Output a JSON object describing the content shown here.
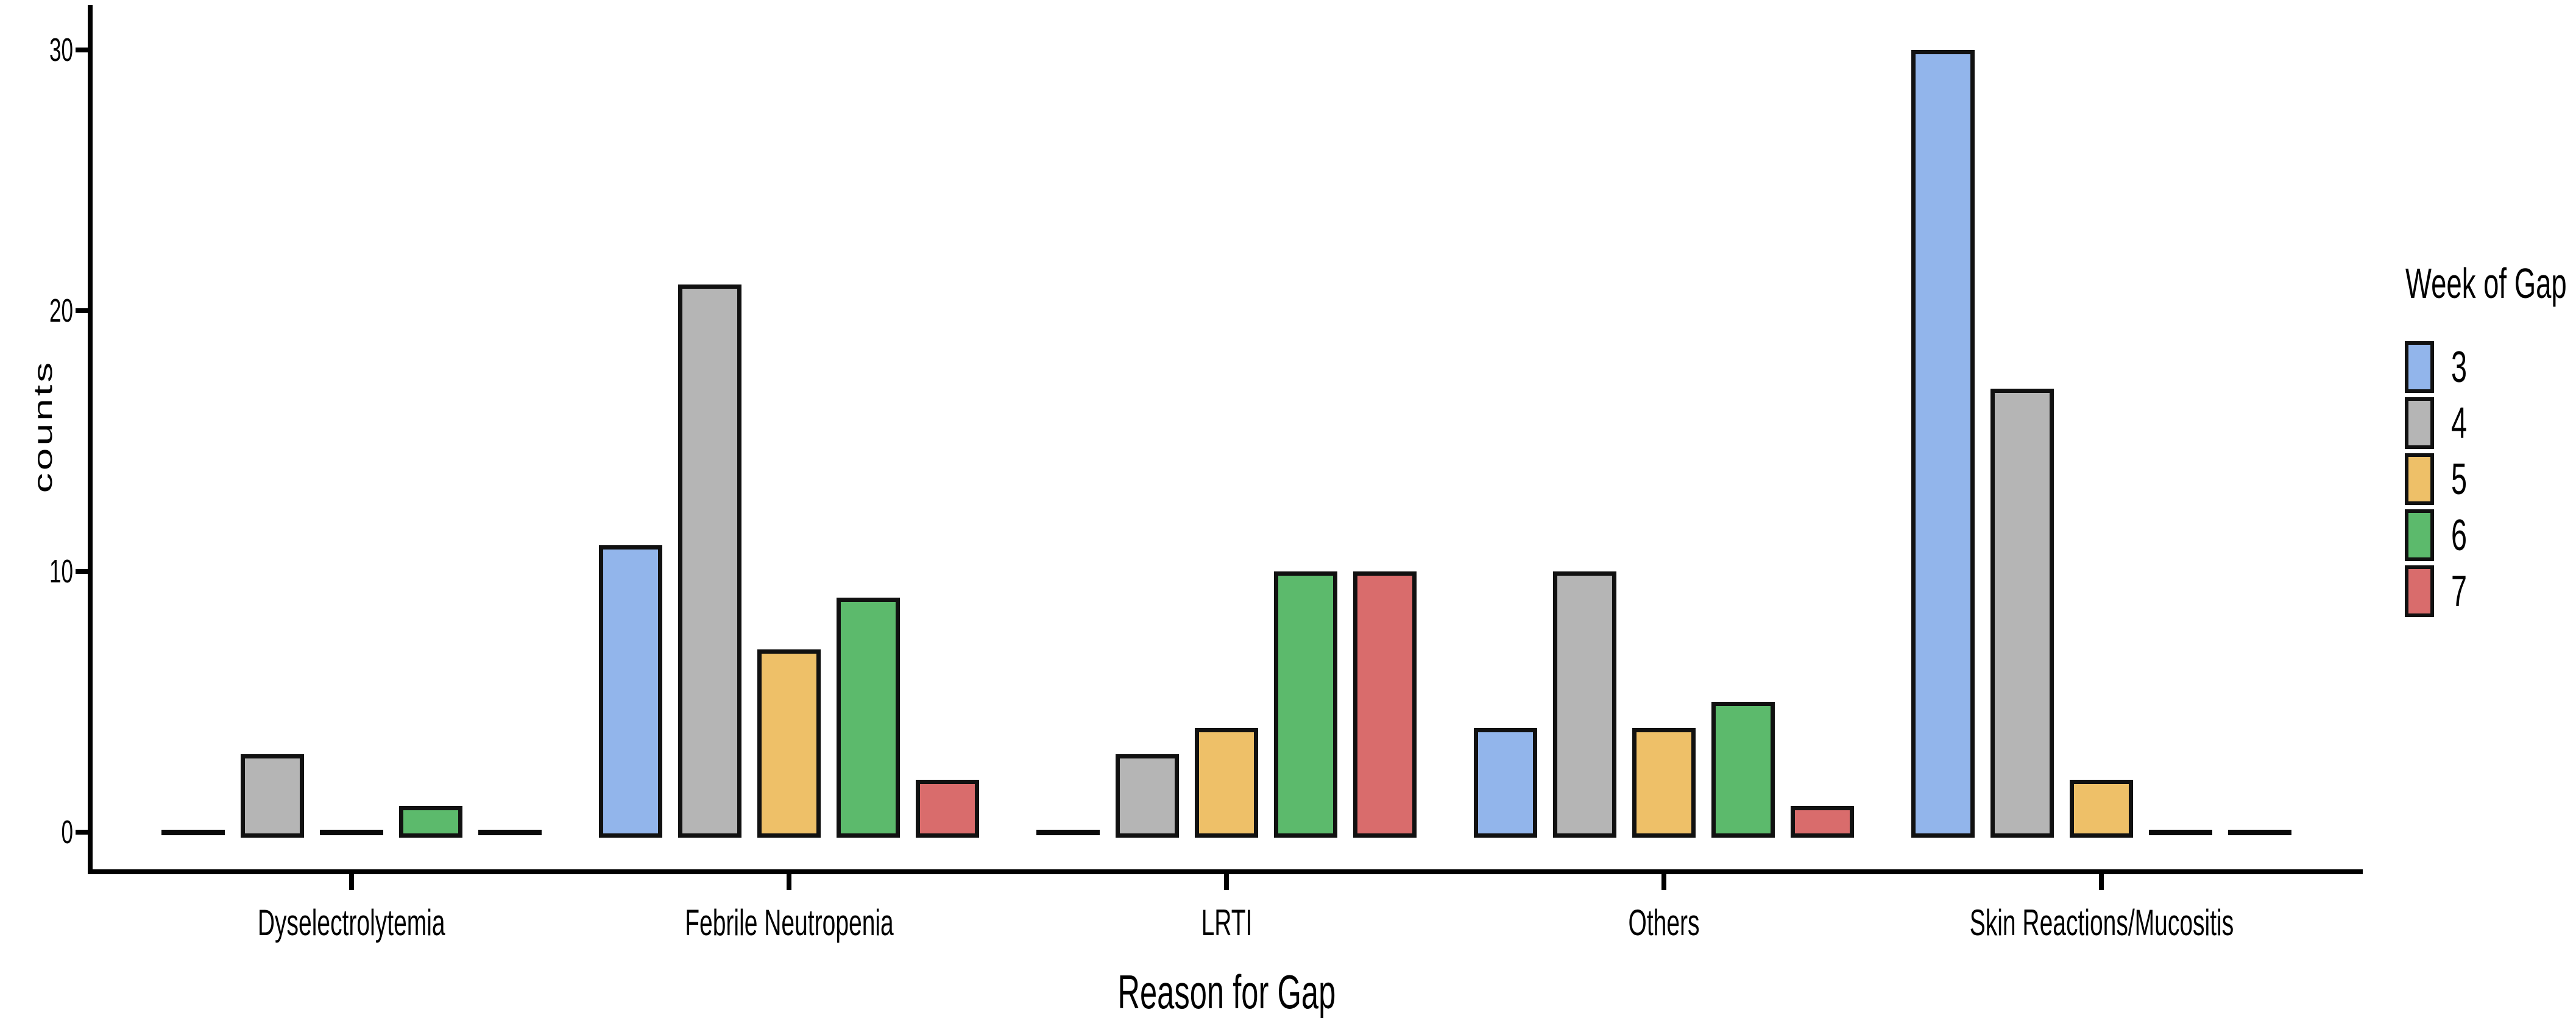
{
  "figure": {
    "background": "#ffffff",
    "axis_color": "#000000",
    "bar_border_color": "#111111",
    "text_color": "#000000"
  },
  "chart_data": {
    "type": "bar",
    "title": "",
    "xlabel": "Reason for Gap",
    "ylabel": "counts",
    "legend_title": "Week of Gap",
    "legend_position": "right",
    "grid": false,
    "ylim": [
      0,
      31.5
    ],
    "y_ticks": [
      0,
      10,
      20,
      30
    ],
    "categories": [
      "Dyselectrolytemia",
      "Febrile Neutropenia",
      "LRTI",
      "Others",
      "Skin Reactions/Mucositis"
    ],
    "series": [
      {
        "name": "3",
        "color": "#92B5EB",
        "values": [
          0,
          11,
          0,
          4,
          30
        ]
      },
      {
        "name": "4",
        "color": "#B5B5B5",
        "values": [
          3,
          21,
          3,
          10,
          17
        ]
      },
      {
        "name": "5",
        "color": "#EEC068",
        "values": [
          0,
          7,
          4,
          4,
          2
        ]
      },
      {
        "name": "6",
        "color": "#5CBA6C",
        "values": [
          1,
          9,
          10,
          5,
          0
        ]
      },
      {
        "name": "7",
        "color": "#D96C6C",
        "values": [
          0,
          2,
          10,
          1,
          0
        ]
      }
    ]
  }
}
